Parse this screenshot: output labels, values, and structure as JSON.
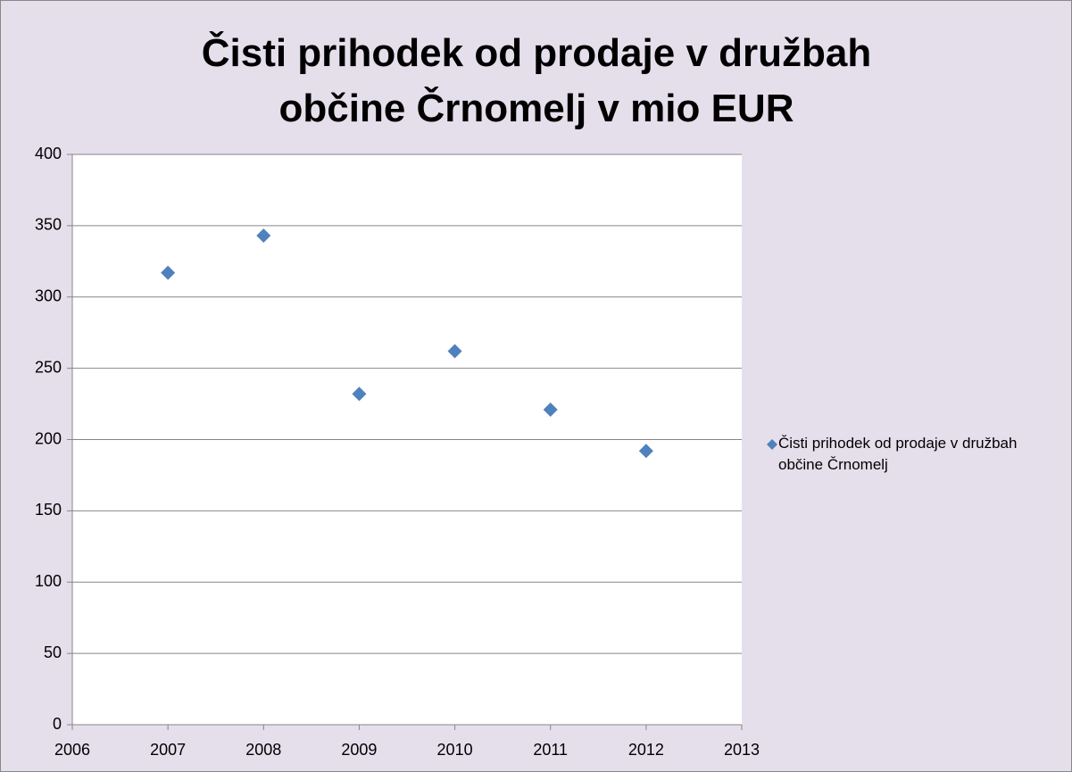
{
  "chart_data": {
    "type": "scatter",
    "title": "Čisti prihodek od prodaje v družbah občine Črnomelj v mio EUR",
    "series": [
      {
        "name": "Čisti prihodek od prodaje v družbah občine Črnomelj",
        "color": "#4f81bd",
        "x": [
          2007,
          2008,
          2009,
          2010,
          2011,
          2012
        ],
        "values": [
          317,
          343,
          232,
          262,
          221,
          192
        ]
      }
    ],
    "xlim": [
      2006,
      2013
    ],
    "xticks": [
      2006,
      2007,
      2008,
      2009,
      2010,
      2011,
      2012,
      2013
    ],
    "ylim": [
      0,
      400
    ],
    "yticks": [
      0,
      50,
      100,
      150,
      200,
      250,
      300,
      350,
      400
    ],
    "grid": true
  }
}
